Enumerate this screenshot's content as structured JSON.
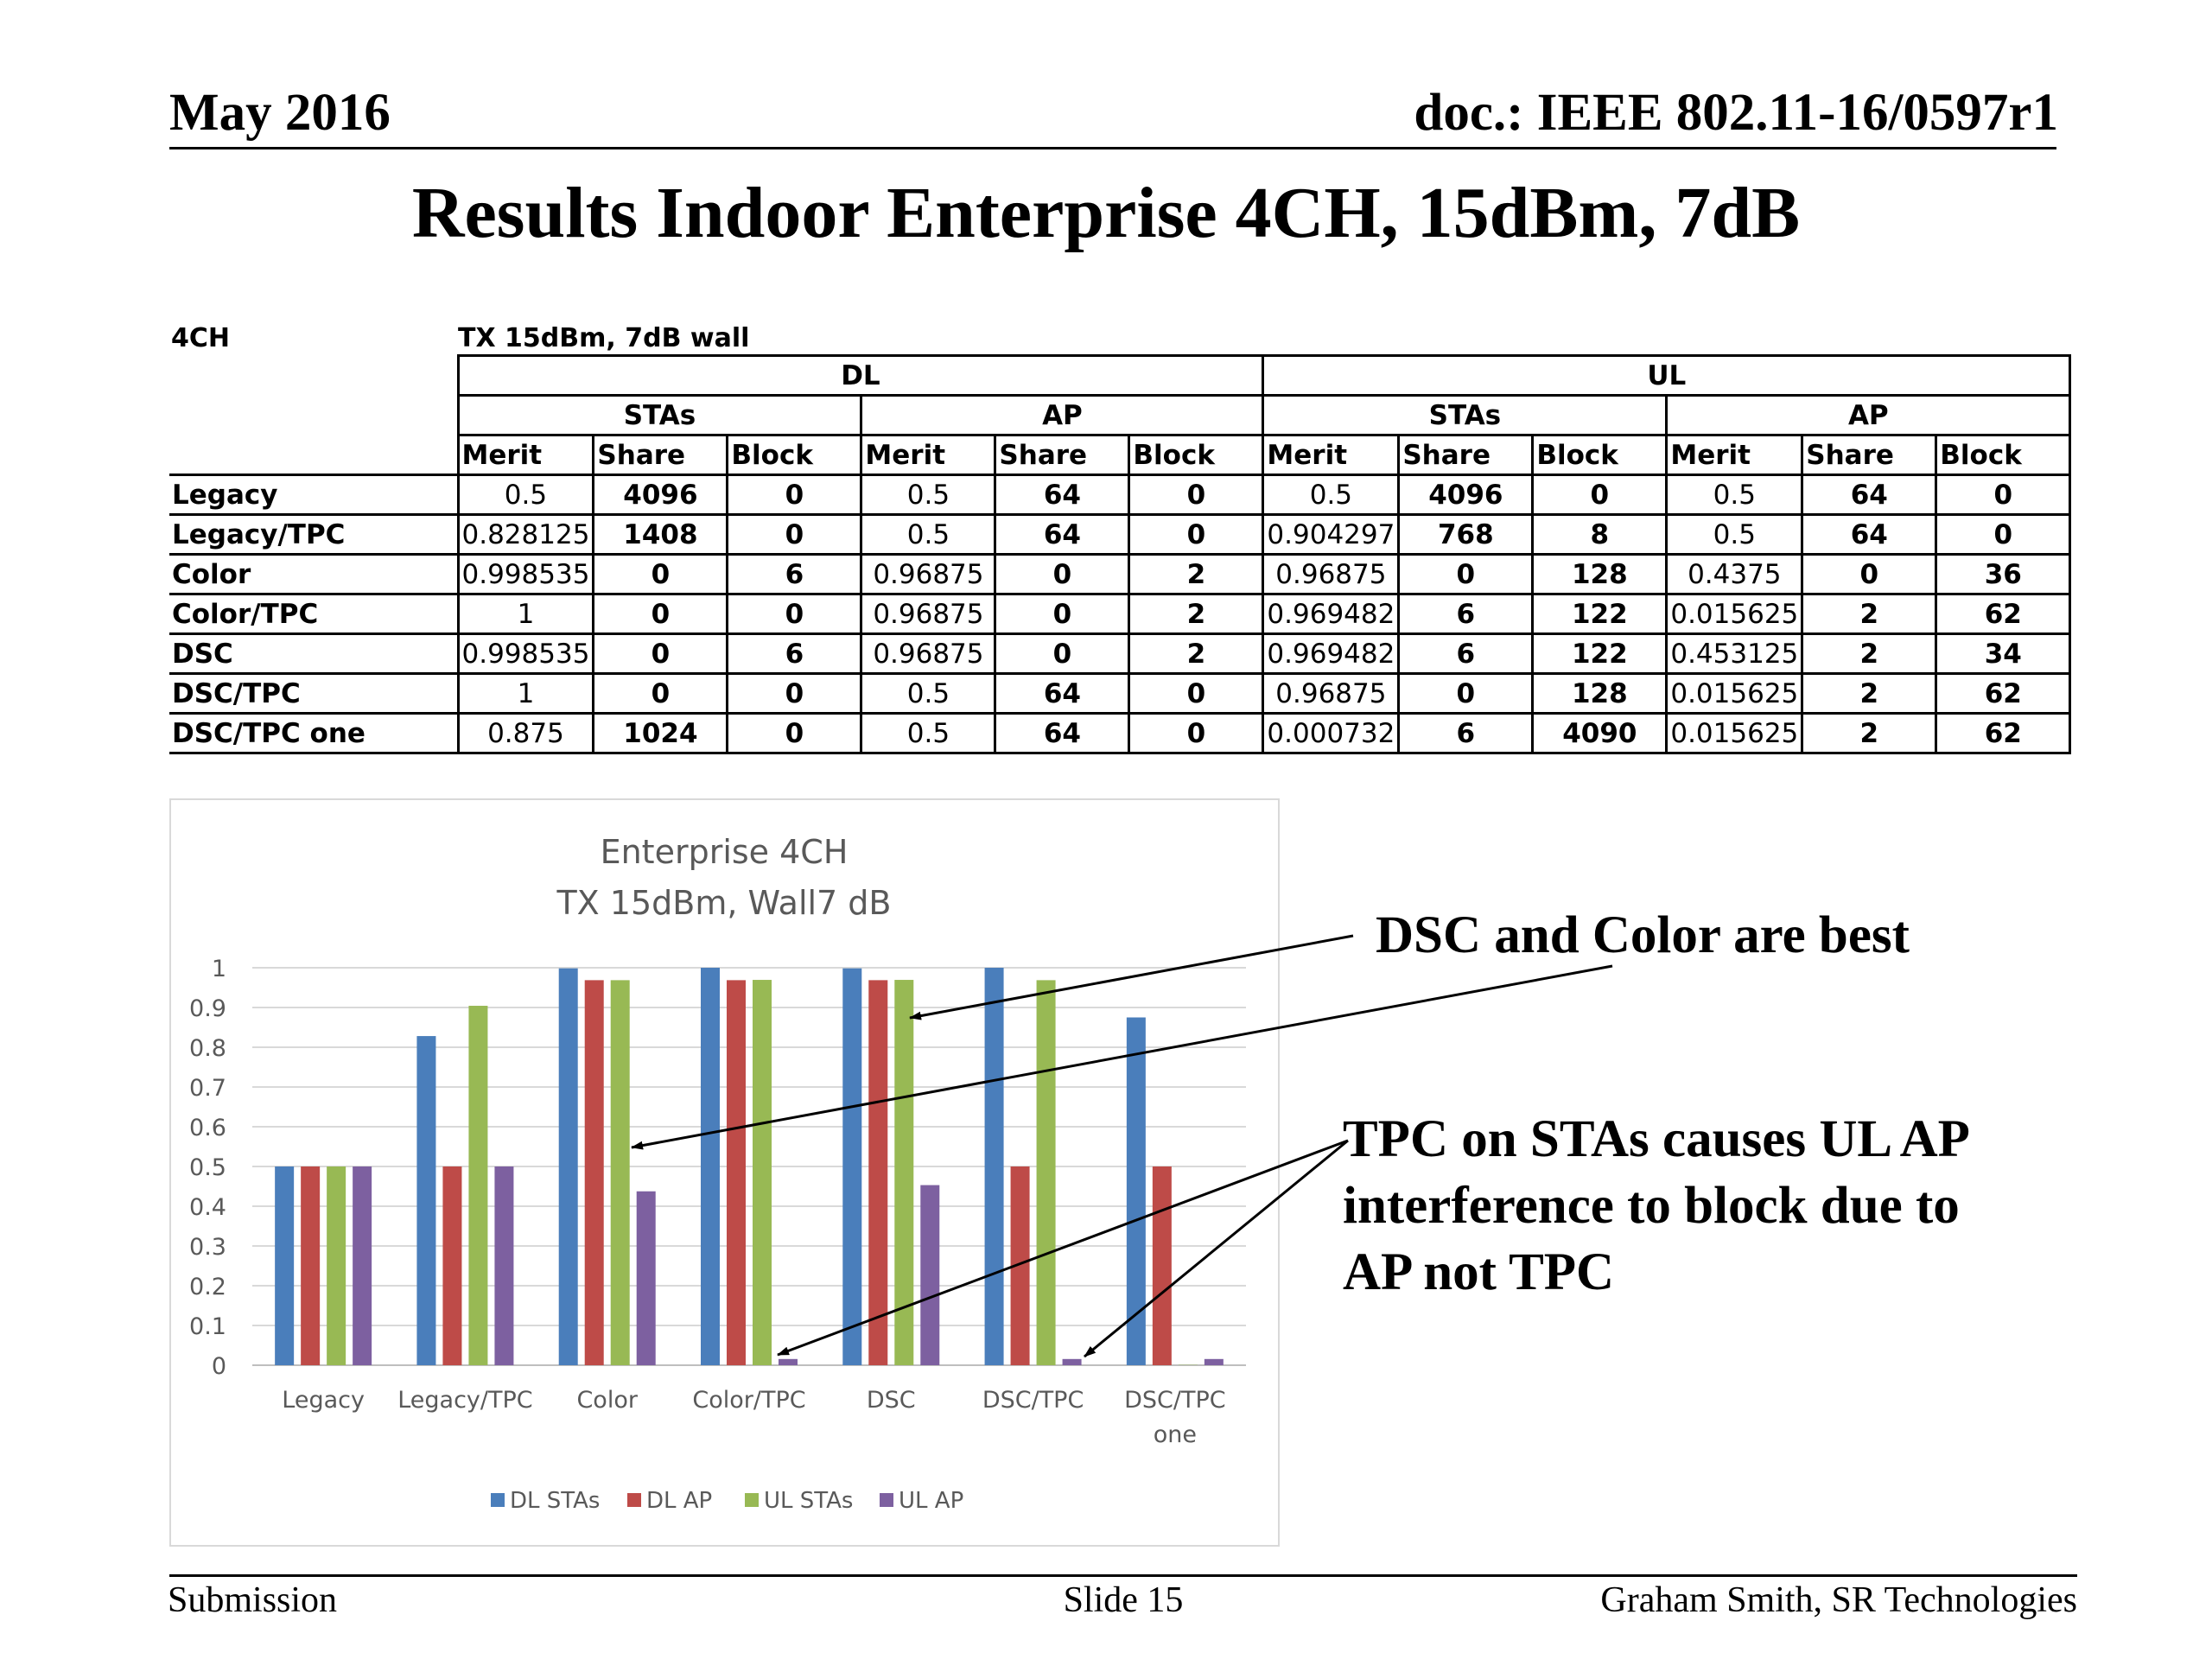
{
  "header": {
    "left": "May 2016",
    "right": "doc.: IEEE 802.11-16/0597r1"
  },
  "title": "Results Indoor Enterprise 4CH, 15dBm, 7dB",
  "table": {
    "label": "4CH",
    "caption": "TX 15dBm, 7dB wall",
    "groups": {
      "dl": "DL",
      "ul": "UL"
    },
    "subgroups": {
      "stas": "STAs",
      "ap": "AP"
    },
    "columns": {
      "merit": "Merit",
      "share": "Share",
      "block": "Block"
    },
    "rows": [
      {
        "name": "Legacy",
        "cells": [
          "0.5",
          "4096",
          "0",
          "0.5",
          "64",
          "0",
          "0.5",
          "4096",
          "0",
          "0.5",
          "64",
          "0"
        ]
      },
      {
        "name": "Legacy/TPC",
        "cells": [
          "0.828125",
          "1408",
          "0",
          "0.5",
          "64",
          "0",
          "0.904297",
          "768",
          "8",
          "0.5",
          "64",
          "0"
        ]
      },
      {
        "name": "Color",
        "cells": [
          "0.998535",
          "0",
          "6",
          "0.96875",
          "0",
          "2",
          "0.96875",
          "0",
          "128",
          "0.4375",
          "0",
          "36"
        ]
      },
      {
        "name": "Color/TPC",
        "cells": [
          "1",
          "0",
          "0",
          "0.96875",
          "0",
          "2",
          "0.969482",
          "6",
          "122",
          "0.015625",
          "2",
          "62"
        ]
      },
      {
        "name": "DSC",
        "cells": [
          "0.998535",
          "0",
          "6",
          "0.96875",
          "0",
          "2",
          "0.969482",
          "6",
          "122",
          "0.453125",
          "2",
          "34"
        ]
      },
      {
        "name": "DSC/TPC",
        "cells": [
          "1",
          "0",
          "0",
          "0.5",
          "64",
          "0",
          "0.96875",
          "0",
          "128",
          "0.015625",
          "2",
          "62"
        ]
      },
      {
        "name": "DSC/TPC one",
        "cells": [
          "0.875",
          "1024",
          "0",
          "0.5",
          "64",
          "0",
          "0.000732",
          "6",
          "4090",
          "0.015625",
          "2",
          "62"
        ]
      }
    ]
  },
  "chart_data": {
    "type": "bar",
    "title": "Enterprise 4CH",
    "subtitle": "TX 15dBm, Wall7 dB",
    "categories": [
      [
        "Legacy"
      ],
      [
        "Legacy/TPC"
      ],
      [
        "Color"
      ],
      [
        "Color/TPC"
      ],
      [
        "DSC"
      ],
      [
        "DSC/TPC"
      ],
      [
        "DSC/TPC",
        "one"
      ]
    ],
    "series": [
      {
        "name": "DL STAs",
        "color": "#4a7ebb",
        "values": [
          0.5,
          0.828125,
          0.998535,
          1,
          0.998535,
          1,
          0.875
        ]
      },
      {
        "name": "DL AP",
        "color": "#be4b48",
        "values": [
          0.5,
          0.5,
          0.96875,
          0.96875,
          0.96875,
          0.5,
          0.5
        ]
      },
      {
        "name": "UL STAs",
        "color": "#98b954",
        "values": [
          0.5,
          0.904297,
          0.96875,
          0.969482,
          0.969482,
          0.96875,
          0.000732
        ]
      },
      {
        "name": "UL AP",
        "color": "#7d60a0",
        "values": [
          0.5,
          0.5,
          0.4375,
          0.015625,
          0.453125,
          0.015625,
          0.015625
        ]
      }
    ],
    "yticks": [
      "0",
      "0.1",
      "0.2",
      "0.3",
      "0.4",
      "0.5",
      "0.6",
      "0.7",
      "0.8",
      "0.9",
      "1"
    ],
    "ylim": [
      0,
      1
    ],
    "grid": true,
    "legend": "bottom"
  },
  "callouts": {
    "best": "DSC and Color are best",
    "tpc": [
      "TPC on STAs causes UL AP",
      "interference to block due to",
      "AP not TPC"
    ]
  },
  "footer": {
    "left": "Submission",
    "middle": "Slide 15",
    "right": "Graham Smith, SR Technologies"
  }
}
